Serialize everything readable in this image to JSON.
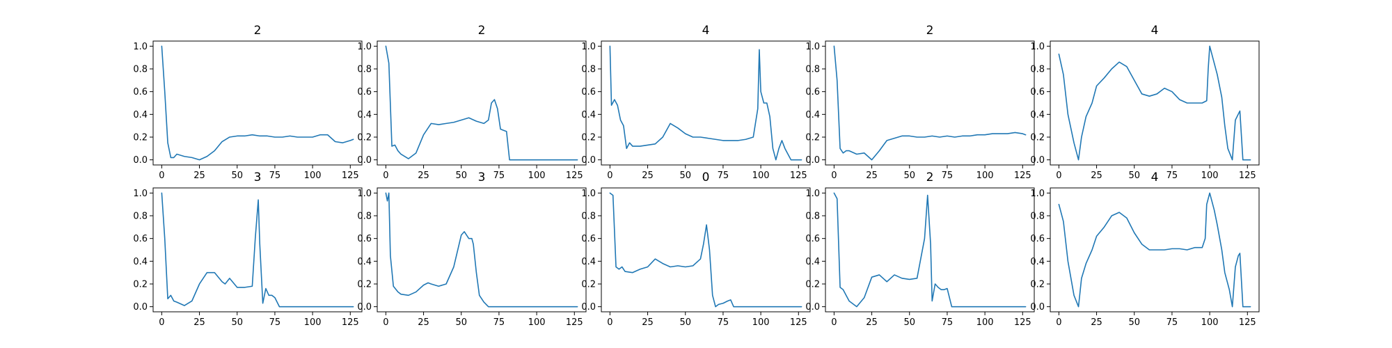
{
  "colors": {
    "line": "#1f77b4",
    "axes": "#000000",
    "background": "#ffffff"
  },
  "chart_data": [
    {
      "type": "line",
      "title": "2",
      "x": [
        0,
        2,
        4,
        6,
        8,
        10,
        15,
        20,
        25,
        30,
        35,
        40,
        45,
        50,
        55,
        60,
        65,
        70,
        75,
        80,
        85,
        90,
        95,
        100,
        105,
        110,
        115,
        120,
        125,
        127
      ],
      "values": [
        1.0,
        0.6,
        0.15,
        0.02,
        0.02,
        0.05,
        0.03,
        0.02,
        0.0,
        0.03,
        0.08,
        0.16,
        0.2,
        0.21,
        0.21,
        0.22,
        0.21,
        0.21,
        0.2,
        0.2,
        0.21,
        0.2,
        0.2,
        0.2,
        0.22,
        0.22,
        0.16,
        0.15,
        0.17,
        0.18
      ],
      "xlim": [
        0,
        127
      ],
      "ylim": [
        0,
        1
      ],
      "xticks": [
        "0",
        "25",
        "50",
        "75",
        "100",
        "125"
      ],
      "yticks": [
        "0.0",
        "0.2",
        "0.4",
        "0.6",
        "0.8",
        "1.0"
      ]
    },
    {
      "type": "line",
      "title": "2",
      "x": [
        0,
        2,
        4,
        6,
        8,
        10,
        15,
        20,
        25,
        30,
        35,
        40,
        45,
        50,
        55,
        60,
        65,
        68,
        70,
        72,
        74,
        76,
        78,
        80,
        82,
        85,
        90,
        100,
        110,
        120,
        127
      ],
      "values": [
        1.0,
        0.85,
        0.12,
        0.13,
        0.08,
        0.05,
        0.01,
        0.06,
        0.22,
        0.32,
        0.31,
        0.32,
        0.33,
        0.35,
        0.37,
        0.34,
        0.32,
        0.35,
        0.5,
        0.53,
        0.45,
        0.27,
        0.26,
        0.25,
        0.0,
        0.0,
        0.0,
        0.0,
        0.0,
        0.0,
        0.0
      ],
      "xlim": [
        0,
        127
      ],
      "ylim": [
        0,
        1
      ],
      "xticks": [
        "0",
        "25",
        "50",
        "75",
        "100",
        "125"
      ],
      "yticks": [
        "0.0",
        "0.2",
        "0.4",
        "0.6",
        "0.8",
        "1.0"
      ]
    },
    {
      "type": "line",
      "title": "4",
      "x": [
        0,
        1,
        3,
        5,
        7,
        9,
        11,
        13,
        15,
        20,
        25,
        30,
        35,
        40,
        45,
        50,
        55,
        60,
        65,
        70,
        75,
        80,
        85,
        90,
        95,
        98,
        99,
        100,
        101,
        102,
        104,
        106,
        108,
        110,
        112,
        114,
        116,
        118,
        120,
        122,
        125,
        127
      ],
      "values": [
        1.0,
        0.48,
        0.53,
        0.48,
        0.35,
        0.3,
        0.1,
        0.15,
        0.12,
        0.12,
        0.13,
        0.14,
        0.2,
        0.32,
        0.28,
        0.23,
        0.2,
        0.2,
        0.19,
        0.18,
        0.17,
        0.17,
        0.17,
        0.18,
        0.2,
        0.45,
        0.97,
        0.6,
        0.55,
        0.5,
        0.5,
        0.38,
        0.1,
        0.0,
        0.1,
        0.17,
        0.1,
        0.05,
        0.0,
        0.0,
        0.0,
        0.0
      ],
      "xlim": [
        0,
        127
      ],
      "ylim": [
        0,
        1
      ],
      "xticks": [
        "0",
        "25",
        "50",
        "75",
        "100",
        "125"
      ],
      "yticks": [
        "0.0",
        "0.2",
        "0.4",
        "0.6",
        "0.8",
        "1.0"
      ]
    },
    {
      "type": "line",
      "title": "2",
      "x": [
        0,
        2,
        4,
        6,
        8,
        10,
        15,
        20,
        25,
        30,
        35,
        40,
        45,
        50,
        55,
        60,
        65,
        70,
        75,
        80,
        85,
        90,
        95,
        100,
        105,
        110,
        115,
        120,
        125,
        127
      ],
      "values": [
        1.0,
        0.7,
        0.1,
        0.06,
        0.08,
        0.08,
        0.05,
        0.06,
        0.0,
        0.08,
        0.17,
        0.19,
        0.21,
        0.21,
        0.2,
        0.2,
        0.21,
        0.2,
        0.21,
        0.2,
        0.21,
        0.21,
        0.22,
        0.22,
        0.23,
        0.23,
        0.23,
        0.24,
        0.23,
        0.22
      ],
      "xlim": [
        0,
        127
      ],
      "ylim": [
        0,
        1
      ],
      "xticks": [
        "0",
        "25",
        "50",
        "75",
        "100",
        "125"
      ],
      "yticks": [
        "0.0",
        "0.2",
        "0.4",
        "0.6",
        "0.8",
        "1.0"
      ]
    },
    {
      "type": "line",
      "title": "4",
      "x": [
        0,
        3,
        6,
        10,
        13,
        15,
        18,
        22,
        25,
        30,
        35,
        40,
        45,
        50,
        55,
        60,
        65,
        70,
        75,
        80,
        85,
        90,
        95,
        98,
        99,
        100,
        102,
        105,
        108,
        110,
        112,
        115,
        117,
        120,
        122,
        125,
        127
      ],
      "values": [
        0.93,
        0.75,
        0.4,
        0.15,
        0.0,
        0.2,
        0.38,
        0.5,
        0.65,
        0.72,
        0.8,
        0.86,
        0.82,
        0.7,
        0.58,
        0.56,
        0.58,
        0.63,
        0.6,
        0.53,
        0.5,
        0.5,
        0.5,
        0.52,
        0.8,
        1.0,
        0.9,
        0.75,
        0.55,
        0.3,
        0.1,
        0.0,
        0.35,
        0.43,
        0.0,
        0.0,
        0.0
      ],
      "xlim": [
        0,
        127
      ],
      "ylim": [
        0,
        1
      ],
      "xticks": [
        "0",
        "25",
        "50",
        "75",
        "100",
        "125"
      ],
      "yticks": [
        "0.0",
        "0.2",
        "0.4",
        "0.6",
        "0.8",
        "1.0"
      ]
    },
    {
      "type": "line",
      "title": "3",
      "x": [
        0,
        2,
        4,
        6,
        8,
        10,
        15,
        20,
        25,
        30,
        35,
        40,
        42,
        45,
        50,
        55,
        60,
        62,
        64,
        65,
        67,
        69,
        71,
        73,
        75,
        78,
        80,
        90,
        100,
        110,
        120,
        127
      ],
      "values": [
        1.0,
        0.6,
        0.07,
        0.1,
        0.05,
        0.04,
        0.01,
        0.05,
        0.2,
        0.3,
        0.3,
        0.22,
        0.2,
        0.25,
        0.17,
        0.17,
        0.18,
        0.6,
        0.94,
        0.55,
        0.03,
        0.16,
        0.1,
        0.1,
        0.08,
        0.0,
        0.0,
        0.0,
        0.0,
        0.0,
        0.0,
        0.0
      ],
      "xlim": [
        0,
        127
      ],
      "ylim": [
        0,
        1
      ],
      "xticks": [
        "0",
        "25",
        "50",
        "75",
        "100",
        "125"
      ],
      "yticks": [
        "0.0",
        "0.2",
        "0.4",
        "0.6",
        "0.8",
        "1.0"
      ]
    },
    {
      "type": "line",
      "title": "3",
      "x": [
        0,
        1,
        2,
        3,
        5,
        8,
        10,
        15,
        20,
        25,
        28,
        30,
        35,
        40,
        45,
        50,
        52,
        55,
        57,
        58,
        60,
        62,
        65,
        68,
        70,
        80,
        90,
        100,
        110,
        120,
        127
      ],
      "values": [
        1.0,
        0.93,
        1.0,
        0.45,
        0.18,
        0.13,
        0.11,
        0.1,
        0.13,
        0.19,
        0.21,
        0.2,
        0.18,
        0.2,
        0.35,
        0.63,
        0.66,
        0.6,
        0.6,
        0.55,
        0.3,
        0.1,
        0.04,
        0.0,
        0.0,
        0.0,
        0.0,
        0.0,
        0.0,
        0.0,
        0.0
      ],
      "xlim": [
        0,
        127
      ],
      "ylim": [
        0,
        1
      ],
      "xticks": [
        "0",
        "25",
        "50",
        "75",
        "100",
        "125"
      ],
      "yticks": [
        "0.0",
        "0.2",
        "0.4",
        "0.6",
        "0.8",
        "1.0"
      ]
    },
    {
      "type": "line",
      "title": "0",
      "x": [
        0,
        2,
        4,
        6,
        8,
        10,
        15,
        20,
        25,
        30,
        35,
        40,
        45,
        50,
        55,
        60,
        62,
        64,
        66,
        68,
        70,
        72,
        75,
        78,
        80,
        82,
        90,
        100,
        110,
        120,
        127
      ],
      "values": [
        1.0,
        0.98,
        0.35,
        0.33,
        0.35,
        0.31,
        0.3,
        0.33,
        0.35,
        0.42,
        0.38,
        0.35,
        0.36,
        0.35,
        0.36,
        0.42,
        0.55,
        0.72,
        0.5,
        0.1,
        0.0,
        0.02,
        0.03,
        0.05,
        0.06,
        0.0,
        0.0,
        0.0,
        0.0,
        0.0,
        0.0
      ],
      "xlim": [
        0,
        127
      ],
      "ylim": [
        0,
        1
      ],
      "xticks": [
        "0",
        "25",
        "50",
        "75",
        "100",
        "125"
      ],
      "yticks": [
        "0.0",
        "0.2",
        "0.4",
        "0.6",
        "0.8",
        "1.0"
      ]
    },
    {
      "type": "line",
      "title": "2",
      "x": [
        0,
        2,
        4,
        6,
        8,
        10,
        15,
        20,
        25,
        30,
        35,
        40,
        45,
        50,
        55,
        60,
        62,
        64,
        65,
        67,
        69,
        71,
        73,
        75,
        78,
        80,
        90,
        100,
        110,
        120,
        127
      ],
      "values": [
        1.0,
        0.95,
        0.17,
        0.15,
        0.1,
        0.05,
        0.0,
        0.08,
        0.26,
        0.28,
        0.22,
        0.28,
        0.25,
        0.24,
        0.25,
        0.6,
        0.98,
        0.55,
        0.05,
        0.2,
        0.17,
        0.15,
        0.15,
        0.16,
        0.0,
        0.0,
        0.0,
        0.0,
        0.0,
        0.0,
        0.0
      ],
      "xlim": [
        0,
        127
      ],
      "ylim": [
        0,
        1
      ],
      "xticks": [
        "0",
        "25",
        "50",
        "75",
        "100",
        "125"
      ],
      "yticks": [
        "0.0",
        "0.2",
        "0.4",
        "0.6",
        "0.8",
        "1.0"
      ]
    },
    {
      "type": "line",
      "title": "4",
      "x": [
        0,
        3,
        6,
        10,
        13,
        15,
        18,
        22,
        25,
        30,
        35,
        40,
        45,
        50,
        55,
        60,
        65,
        70,
        75,
        80,
        85,
        90,
        95,
        97,
        98,
        100,
        103,
        105,
        108,
        110,
        113,
        115,
        117,
        119,
        120,
        122,
        125,
        127
      ],
      "values": [
        0.9,
        0.75,
        0.4,
        0.1,
        0.0,
        0.25,
        0.38,
        0.5,
        0.62,
        0.7,
        0.8,
        0.83,
        0.78,
        0.65,
        0.55,
        0.5,
        0.5,
        0.5,
        0.51,
        0.51,
        0.5,
        0.52,
        0.52,
        0.6,
        0.9,
        1.0,
        0.85,
        0.72,
        0.5,
        0.3,
        0.15,
        0.0,
        0.35,
        0.45,
        0.47,
        0.0,
        0.0,
        0.0
      ],
      "xlim": [
        0,
        127
      ],
      "ylim": [
        0,
        1
      ],
      "xticks": [
        "0",
        "25",
        "50",
        "75",
        "100",
        "125"
      ],
      "yticks": [
        "0.0",
        "0.2",
        "0.4",
        "0.6",
        "0.8",
        "1.0"
      ]
    }
  ]
}
